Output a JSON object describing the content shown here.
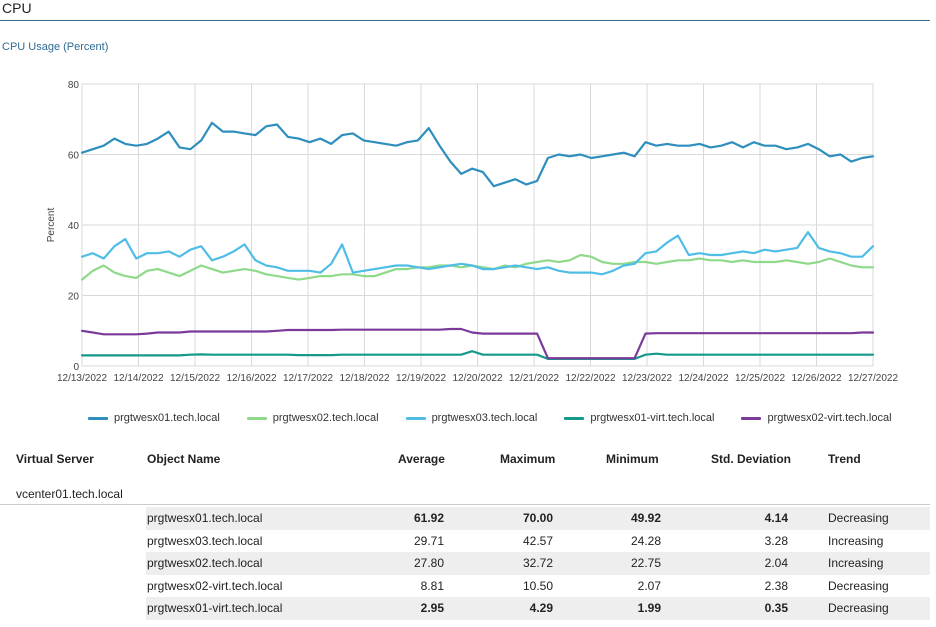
{
  "header": {
    "title": "CPU",
    "section_title": "CPU Usage (Percent)"
  },
  "chart_data": {
    "type": "line",
    "title": "",
    "xlabel": "",
    "ylabel": "Percent",
    "ylim": [
      0,
      80
    ],
    "yticks": [
      "0",
      "20",
      "40",
      "60",
      "80"
    ],
    "x_tick_labels": [
      "12/13/2022",
      "12/14/2022",
      "12/15/2022",
      "12/16/2022",
      "12/17/2022",
      "12/18/2022",
      "12/19/2022",
      "12/20/2022",
      "12/21/2022",
      "12/22/2022",
      "12/23/2022",
      "12/24/2022",
      "12/25/2022",
      "12/26/2022",
      "12/27/2022"
    ],
    "x_range": [
      "12/13/2022",
      "12/27/2022"
    ],
    "grid": true,
    "legend_position": "bottom",
    "series": [
      {
        "name": "prgtwesx01.tech.local",
        "color": "#2e8fbe",
        "values": [
          60.5,
          61.5,
          62.5,
          64.5,
          63,
          62.5,
          63,
          64.5,
          66.5,
          62,
          61.5,
          64,
          69,
          66.5,
          66.5,
          66,
          65.5,
          68,
          68.5,
          65,
          64.5,
          63.5,
          64.5,
          63,
          65.5,
          66,
          64,
          63.5,
          63,
          62.5,
          63.5,
          64,
          67.5,
          62.5,
          58,
          54.5,
          56,
          55,
          51,
          52,
          53,
          51.5,
          52.5,
          59,
          60,
          59.5,
          60,
          59,
          59.5,
          60,
          60.5,
          59.5,
          63.5,
          62.5,
          63,
          62.5,
          62.5,
          63,
          62,
          62.5,
          63.5,
          62,
          63.5,
          62.5,
          62.5,
          61.5,
          62,
          63,
          61.5,
          59.5,
          60,
          58,
          59,
          59.5
        ]
      },
      {
        "name": "prgtwesx02.tech.local",
        "color": "#8ed98a",
        "values": [
          24.5,
          27,
          28.5,
          26.5,
          25.5,
          25,
          27,
          27.5,
          26.5,
          25.5,
          27,
          28.5,
          27.5,
          26.5,
          27,
          27.5,
          27,
          26,
          25.5,
          25,
          24.5,
          25,
          25.5,
          25.5,
          26,
          26,
          25.5,
          25.5,
          26.5,
          27.5,
          27.5,
          28,
          28,
          28.5,
          28.5,
          28,
          28.5,
          28,
          27.5,
          28.5,
          28,
          29,
          29.5,
          30,
          29.5,
          30,
          31.5,
          31,
          29.5,
          29,
          29,
          29.5,
          29.5,
          29,
          29.5,
          30,
          30,
          30.5,
          30,
          30,
          29.5,
          30,
          29.5,
          29.5,
          29.5,
          30,
          29.5,
          29,
          29.5,
          30.5,
          29.5,
          28.5,
          28,
          28
        ]
      },
      {
        "name": "prgtwesx03.tech.local",
        "color": "#50bde6",
        "values": [
          31,
          32,
          30.5,
          34,
          36,
          30.5,
          32,
          32,
          32.5,
          31,
          33,
          34,
          30,
          31,
          32.5,
          34.5,
          30,
          28.5,
          28,
          27,
          27,
          27,
          26.5,
          29,
          34.5,
          26.5,
          27,
          27.5,
          28,
          28.5,
          28.5,
          28,
          27.5,
          28,
          28.5,
          29,
          28.5,
          27.5,
          27.5,
          28,
          28.5,
          28,
          27.5,
          28,
          27,
          26.5,
          26.5,
          26.5,
          26,
          27,
          28.5,
          29,
          32,
          32.5,
          35,
          37,
          31.5,
          32,
          31.5,
          31.5,
          32,
          32.5,
          32,
          33,
          32.5,
          33,
          33.5,
          38,
          33.5,
          32.5,
          32,
          31,
          31,
          34
        ]
      },
      {
        "name": "prgtwesx01-virt.tech.local",
        "color": "#15998a",
        "values": [
          3,
          3,
          3,
          3,
          3,
          3,
          3,
          3,
          3,
          3,
          3.2,
          3.3,
          3.2,
          3.2,
          3.2,
          3.2,
          3.2,
          3.2,
          3.2,
          3.2,
          3.1,
          3.1,
          3.1,
          3.1,
          3.2,
          3.2,
          3.2,
          3.2,
          3.2,
          3.2,
          3.2,
          3.2,
          3.2,
          3.2,
          3.2,
          3.2,
          4.2,
          3.2,
          3.2,
          3.2,
          3.2,
          3.2,
          3.2,
          2,
          2,
          2,
          2,
          2,
          2,
          2,
          2,
          2,
          3.2,
          3.5,
          3.2,
          3.2,
          3.2,
          3.2,
          3.2,
          3.2,
          3.2,
          3.2,
          3.2,
          3.2,
          3.2,
          3.2,
          3.2,
          3.2,
          3.2,
          3.2,
          3.2,
          3.2,
          3.2,
          3.2
        ]
      },
      {
        "name": "prgtwesx02-virt.tech.local",
        "color": "#7b3a9a",
        "values": [
          10,
          9.5,
          9,
          9,
          9,
          9,
          9.2,
          9.5,
          9.5,
          9.5,
          9.8,
          9.8,
          9.8,
          9.8,
          9.8,
          9.8,
          9.8,
          9.8,
          10,
          10.2,
          10.2,
          10.2,
          10.2,
          10.2,
          10.3,
          10.3,
          10.3,
          10.3,
          10.3,
          10.3,
          10.3,
          10.3,
          10.3,
          10.3,
          10.5,
          10.5,
          9.5,
          9.2,
          9.2,
          9.2,
          9.2,
          9.2,
          9.2,
          2.2,
          2.2,
          2.2,
          2.2,
          2.2,
          2.2,
          2.2,
          2.2,
          2.2,
          9.2,
          9.3,
          9.3,
          9.3,
          9.3,
          9.3,
          9.3,
          9.3,
          9.3,
          9.3,
          9.3,
          9.3,
          9.3,
          9.3,
          9.3,
          9.3,
          9.3,
          9.3,
          9.3,
          9.3,
          9.5,
          9.5
        ]
      }
    ]
  },
  "table": {
    "columns": {
      "virtual_server": "Virtual Server",
      "object_name": "Object Name",
      "average": "Average",
      "maximum": "Maximum",
      "minimum": "Minimum",
      "std_dev": "Std. Deviation",
      "trend": "Trend"
    },
    "group_label": "vcenter01.tech.local",
    "rows": [
      {
        "name": "prgtwesx01.tech.local",
        "average": "61.92",
        "maximum": "70.00",
        "minimum": "49.92",
        "std_dev": "4.14",
        "trend": "Decreasing"
      },
      {
        "name": "prgtwesx03.tech.local",
        "average": "29.71",
        "maximum": "42.57",
        "minimum": "24.28",
        "std_dev": "3.28",
        "trend": "Increasing"
      },
      {
        "name": "prgtwesx02.tech.local",
        "average": "27.80",
        "maximum": "32.72",
        "minimum": "22.75",
        "std_dev": "2.04",
        "trend": "Increasing"
      },
      {
        "name": "prgtwesx02-virt.tech.local",
        "average": "8.81",
        "maximum": "10.50",
        "minimum": "2.07",
        "std_dev": "2.38",
        "trend": "Decreasing"
      },
      {
        "name": "prgtwesx01-virt.tech.local",
        "average": "2.95",
        "maximum": "4.29",
        "minimum": "1.99",
        "std_dev": "0.35",
        "trend": "Decreasing"
      }
    ]
  }
}
